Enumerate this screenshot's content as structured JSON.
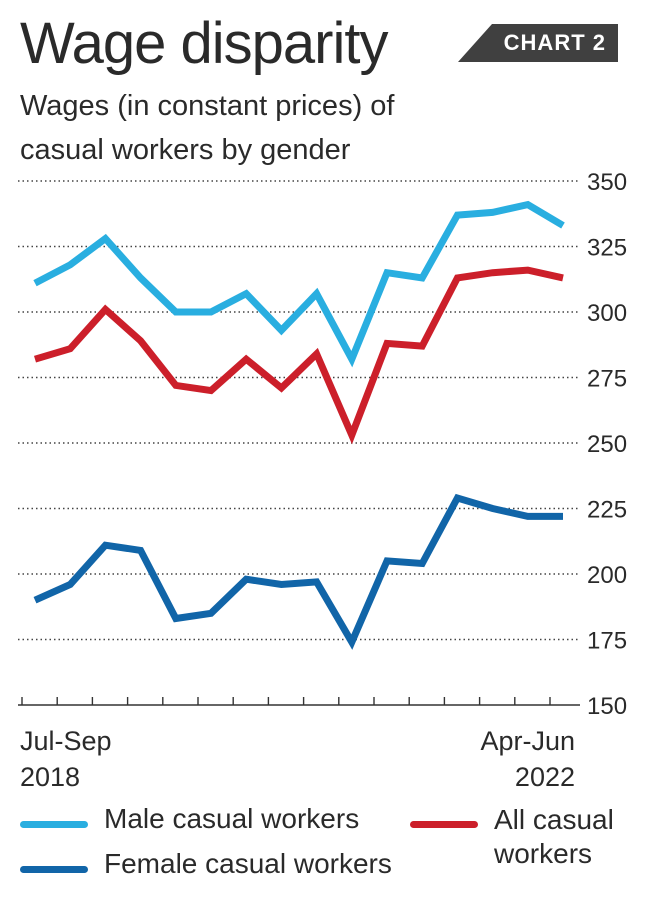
{
  "header": {
    "title": "Wage disparity",
    "badge": "CHART 2",
    "subtitle": "Wages (in constant prices) of\ncasual workers by gender"
  },
  "chart_data": {
    "type": "line",
    "title": "Wage disparity",
    "subtitle": "Wages (in constant prices) of casual workers by gender",
    "x_start_label": [
      "Jul-Sep",
      "2018"
    ],
    "x_end_label": [
      "Apr-Jun",
      "2022"
    ],
    "x_count": 16,
    "ylim": [
      150,
      350
    ],
    "yticks": [
      150,
      175,
      200,
      225,
      250,
      275,
      300,
      325,
      350
    ],
    "y_axis_side": "right",
    "grid": "dotted horizontal",
    "legend_position": "bottom",
    "series": [
      {
        "name": "Male casual workers",
        "color": "#29aee0",
        "values": [
          311,
          318,
          328,
          313,
          300,
          300,
          307,
          293,
          307,
          282,
          315,
          313,
          337,
          338,
          341,
          333
        ]
      },
      {
        "name": "All casual workers",
        "color": "#cc1f2a",
        "values": [
          282,
          286,
          301,
          289,
          272,
          270,
          282,
          271,
          284,
          253,
          288,
          287,
          313,
          315,
          316,
          313
        ]
      },
      {
        "name": "Female casual workers",
        "color": "#1165a8",
        "values": [
          190,
          196,
          211,
          209,
          183,
          185,
          198,
          196,
          197,
          174,
          205,
          204,
          229,
          225,
          222,
          222
        ]
      }
    ]
  },
  "legend": {
    "male": "Male casual workers",
    "female": "Female casual workers",
    "all": "All casual\nworkers"
  }
}
